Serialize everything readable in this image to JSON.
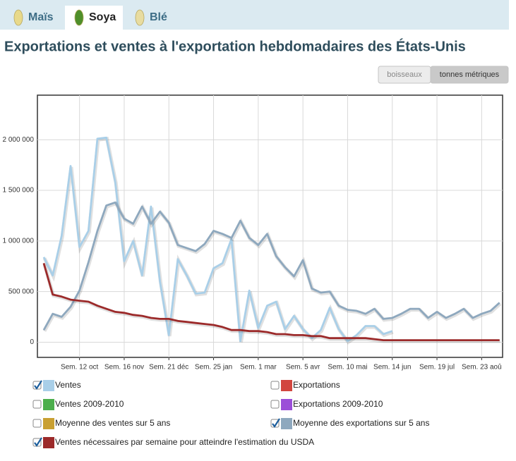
{
  "tabs": [
    {
      "label": "Maïs",
      "selected": false
    },
    {
      "label": "Soya",
      "selected": true
    },
    {
      "label": "Blé",
      "selected": false
    }
  ],
  "title": "Exportations et ventes à l'exportation hebdomadaires des États-Unis",
  "units": [
    {
      "label": "boisseaux",
      "selected": false
    },
    {
      "label": "tonnes métriques",
      "selected": true
    }
  ],
  "chart_data": {
    "type": "line",
    "categories": [
      null,
      null,
      null,
      null,
      "Sem. 12 oct",
      null,
      null,
      null,
      null,
      "Sem. 16 nov",
      null,
      null,
      null,
      null,
      "Sem. 21 déc",
      null,
      null,
      null,
      null,
      "Sem. 25 jan",
      null,
      null,
      null,
      null,
      "Sem. 1 mar",
      null,
      null,
      null,
      null,
      "Sem. 5 avr",
      null,
      null,
      null,
      null,
      "Sem. 10 mai",
      null,
      null,
      null,
      null,
      "Sem. 14 jun",
      null,
      null,
      null,
      null,
      "Sem. 19 jul",
      null,
      null,
      null,
      null,
      "Sem. 23 aoû",
      null,
      null
    ],
    "ylim": [
      -150000,
      2440000
    ],
    "yticks": [
      0,
      {
        "value": 500000,
        "label": "500 000"
      },
      {
        "value": 1000000,
        "label": "1 000 000"
      },
      {
        "value": 1500000,
        "label": "1 500 000"
      },
      {
        "value": 2000000,
        "label": "2 000 000"
      }
    ],
    "grid": true,
    "series": [
      {
        "name": "Ventes",
        "color": "#a9cfe8",
        "checked": true,
        "values": [
          840000,
          660000,
          1050000,
          1740000,
          940000,
          1100000,
          2010000,
          2020000,
          1580000,
          800000,
          1000000,
          660000,
          1340000,
          600000,
          70000,
          820000,
          660000,
          480000,
          490000,
          730000,
          780000,
          1020000,
          10000,
          510000,
          140000,
          360000,
          400000,
          130000,
          260000,
          130000,
          40000,
          120000,
          340000,
          130000,
          10000,
          70000,
          160000,
          160000,
          80000,
          110000,
          null,
          null,
          null,
          null,
          null,
          null,
          null,
          null,
          null,
          null,
          null,
          null
        ]
      },
      {
        "name": "Exportations",
        "color": "#d2463f",
        "checked": false
      },
      {
        "name": "Ventes 2009-2010",
        "color": "#4cae4c",
        "checked": false
      },
      {
        "name": "Exportations 2009-2010",
        "color": "#9b4fd8",
        "checked": false
      },
      {
        "name": "Moyenne des ventes sur 5 ans",
        "color": "#c9a032",
        "checked": false
      },
      {
        "name": "Moyenne des exportations sur 5 ans",
        "color": "#8ea8be",
        "checked": true,
        "values": [
          120000,
          280000,
          250000,
          350000,
          510000,
          790000,
          1100000,
          1350000,
          1380000,
          1220000,
          1170000,
          1340000,
          1170000,
          1290000,
          1180000,
          960000,
          930000,
          900000,
          970000,
          1100000,
          1070000,
          1030000,
          1200000,
          1030000,
          960000,
          1070000,
          850000,
          740000,
          650000,
          810000,
          530000,
          490000,
          500000,
          360000,
          320000,
          310000,
          280000,
          330000,
          230000,
          240000,
          280000,
          330000,
          330000,
          240000,
          300000,
          240000,
          280000,
          330000,
          240000,
          280000,
          310000,
          390000
        ]
      },
      {
        "name": "Ventes nécessaires par semaine pour atteindre l'estimation du USDA",
        "color": "#9c2a2a",
        "checked": true,
        "values": [
          780000,
          470000,
          450000,
          420000,
          410000,
          400000,
          360000,
          330000,
          300000,
          290000,
          270000,
          260000,
          240000,
          230000,
          230000,
          210000,
          200000,
          190000,
          180000,
          170000,
          150000,
          120000,
          120000,
          110000,
          110000,
          100000,
          80000,
          80000,
          70000,
          70000,
          60000,
          60000,
          40000,
          40000,
          40000,
          40000,
          40000,
          30000,
          20000,
          20000,
          20000,
          20000,
          20000,
          20000,
          20000,
          20000,
          20000,
          20000,
          20000,
          20000,
          20000,
          20000
        ]
      }
    ]
  }
}
